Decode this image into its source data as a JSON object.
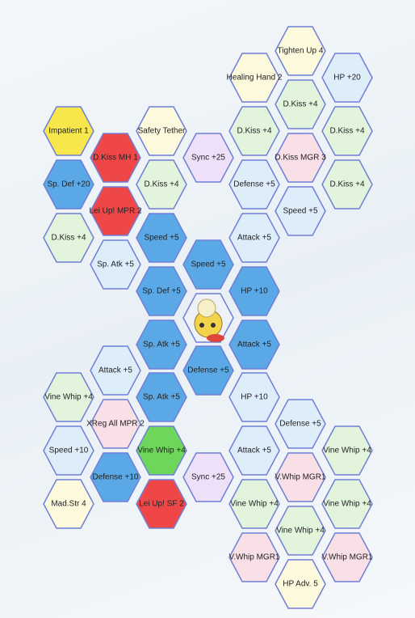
{
  "nodes": [
    "Impatient 1",
    "Sp. Def +20",
    "D.Kiss +4",
    "Vine Whip +4",
    "Speed +10",
    "Mad.Str 4",
    "D.Kiss MH 1",
    "Lei Up! MPR 2",
    "Sp. Atk +5",
    "Attack +5",
    "XReg All MPR 2",
    "Defense +10",
    "Safety Tether",
    "D.Kiss +4",
    "Speed +5",
    "Sp. Def +5",
    "Sp. Atk +5",
    "Sp. Atk +5",
    "Vine Whip +4",
    "Lei Up!  SF 2",
    "Sync +25",
    "Speed +5",
    "Defense +5",
    "Sync +25",
    "Healing Hand 2",
    "D.Kiss +4",
    "Defense +5",
    "Attack +5",
    "HP +10",
    "Attack +5",
    "HP +10",
    "Attack +5",
    "Vine Whip +4",
    "V.Whip MGR1",
    "Tighten Up 4",
    "D.Kiss +4",
    "D.Kiss MGR 3",
    "Speed +5",
    "Defense +5",
    "V.Whip MGR1",
    "Vine Whip +4",
    "HP Adv. 5",
    "HP +20",
    "D.Kiss +4",
    "D.Kiss +4",
    "Vine Whip +4",
    "Vine Whip +4",
    "V.Whip MGR1"
  ]
}
